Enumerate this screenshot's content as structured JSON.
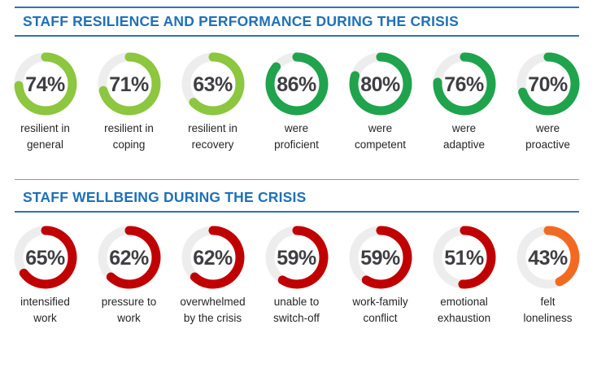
{
  "colors": {
    "header_text": "#1E71B8",
    "rule": "#2E75B6",
    "rule_thin": "#6FA3D2",
    "track": "#EDEDED",
    "percent_text": "#3F3F43",
    "label_text": "#262626",
    "light_green": "#8DC63F",
    "green": "#1FA34D",
    "dark_red": "#C00000",
    "orange": "#F26A21"
  },
  "sections": [
    {
      "title": "STAFF RESILIENCE AND PERFORMANCE DURING THE CRISIS",
      "items": [
        {
          "pct": 74,
          "display": "74%",
          "label": "resilient in\ngeneral",
          "color_key": "light_green"
        },
        {
          "pct": 71,
          "display": "71%",
          "label": "resilient in\ncoping",
          "color_key": "light_green"
        },
        {
          "pct": 63,
          "display": "63%",
          "label": "resilient in\nrecovery",
          "color_key": "light_green"
        },
        {
          "pct": 86,
          "display": "86%",
          "label": "were\nproficient",
          "color_key": "green"
        },
        {
          "pct": 80,
          "display": "80%",
          "label": "were\ncompetent",
          "color_key": "green"
        },
        {
          "pct": 76,
          "display": "76%",
          "label": "were\nadaptive",
          "color_key": "green"
        },
        {
          "pct": 70,
          "display": "70%",
          "label": "were\nproactive",
          "color_key": "green"
        }
      ]
    },
    {
      "title": "STAFF WELLBEING DURING THE CRISIS",
      "items": [
        {
          "pct": 65,
          "display": "65%",
          "label": "intensified\nwork",
          "color_key": "dark_red"
        },
        {
          "pct": 62,
          "display": "62%",
          "label": "pressure to\nwork",
          "color_key": "dark_red"
        },
        {
          "pct": 62,
          "display": "62%",
          "label": "overwhelmed\nby the crisis",
          "color_key": "dark_red"
        },
        {
          "pct": 59,
          "display": "59%",
          "label": "unable to\nswitch-off",
          "color_key": "dark_red"
        },
        {
          "pct": 59,
          "display": "59%",
          "label": "work-family\nconflict",
          "color_key": "dark_red"
        },
        {
          "pct": 51,
          "display": "51%",
          "label": "emotional\nexhaustion",
          "color_key": "dark_red"
        },
        {
          "pct": 43,
          "display": "43%",
          "label": "felt\nloneliness",
          "color_key": "orange"
        }
      ]
    }
  ],
  "chart_data": [
    {
      "type": "pie",
      "subtype": "donut-gauge-row",
      "title": "STAFF RESILIENCE AND PERFORMANCE DURING THE CRISIS",
      "unit": "%",
      "categories": [
        "resilient in general",
        "resilient in coping",
        "resilient in recovery",
        "were proficient",
        "were competent",
        "were adaptive",
        "were proactive"
      ],
      "values": [
        74,
        71,
        63,
        86,
        80,
        76,
        70
      ],
      "slice_colors": [
        "#8DC63F",
        "#8DC63F",
        "#8DC63F",
        "#1FA34D",
        "#1FA34D",
        "#1FA34D",
        "#1FA34D"
      ],
      "track_color": "#EDEDED",
      "start_angle_deg": 0,
      "direction": "clockwise",
      "legend_position": "below-each-gauge"
    },
    {
      "type": "pie",
      "subtype": "donut-gauge-row",
      "title": "STAFF WELLBEING DURING THE CRISIS",
      "unit": "%",
      "categories": [
        "intensified work",
        "pressure to work",
        "overwhelmed by the crisis",
        "unable to switch-off",
        "work-family conflict",
        "emotional exhaustion",
        "felt loneliness"
      ],
      "values": [
        65,
        62,
        62,
        59,
        59,
        51,
        43
      ],
      "slice_colors": [
        "#C00000",
        "#C00000",
        "#C00000",
        "#C00000",
        "#C00000",
        "#C00000",
        "#F26A21"
      ],
      "track_color": "#EDEDED",
      "start_angle_deg": 0,
      "direction": "clockwise",
      "legend_position": "below-each-gauge"
    }
  ]
}
